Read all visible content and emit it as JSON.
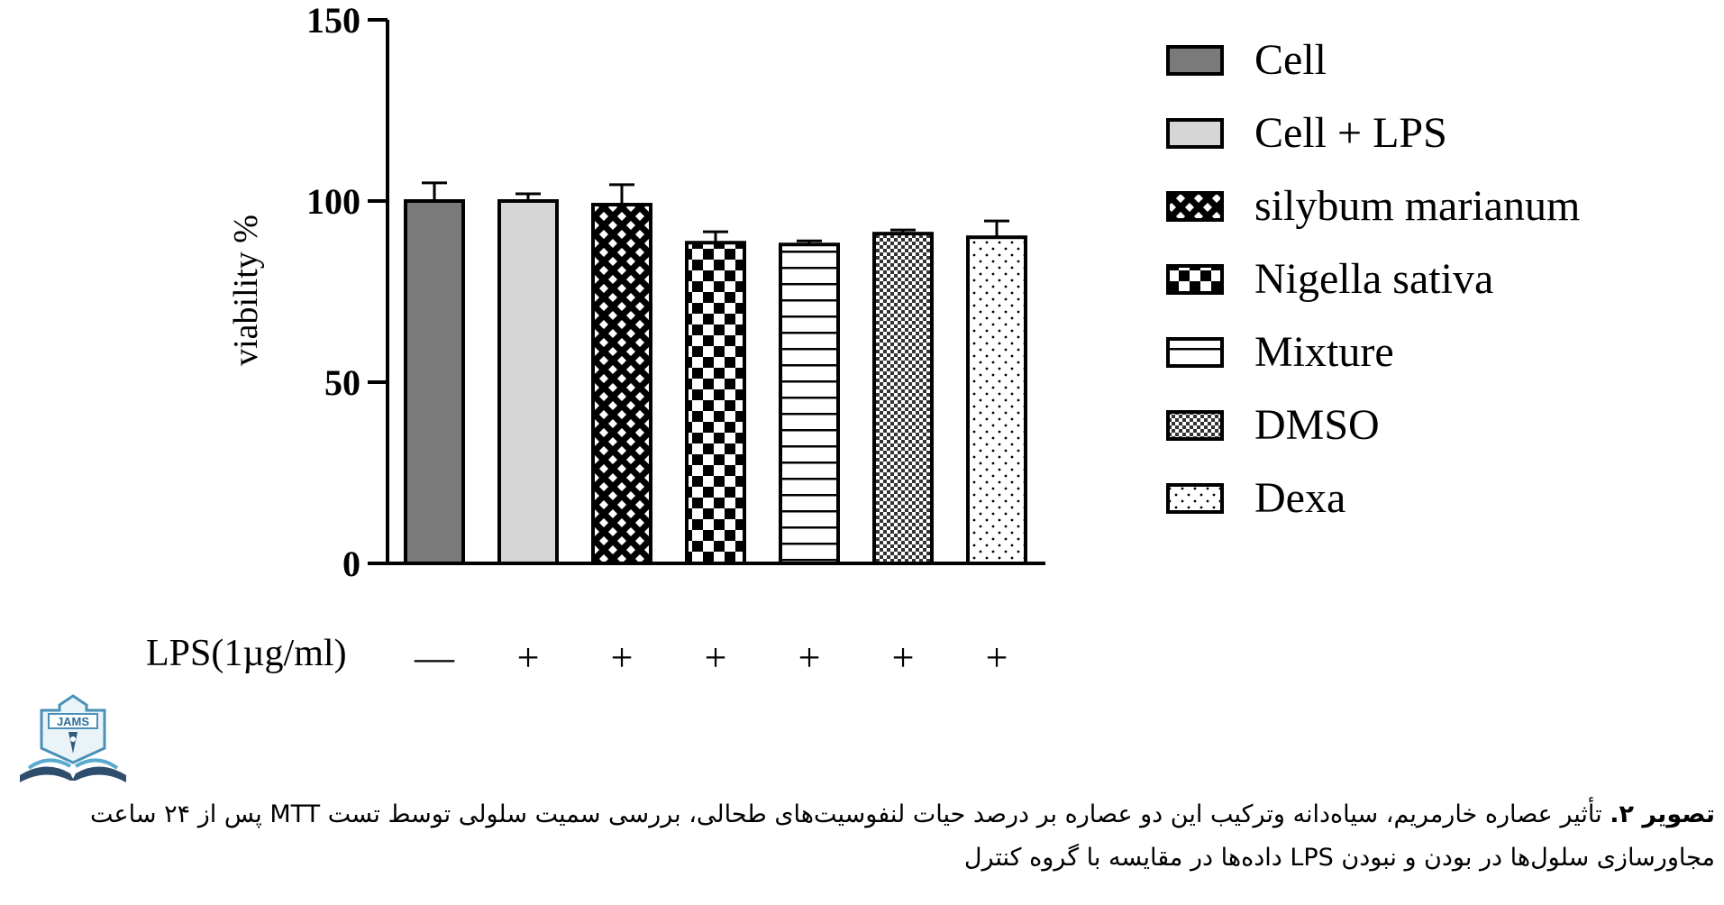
{
  "chart_data": {
    "type": "bar",
    "ylabel": "viability %",
    "ylim": [
      0,
      150
    ],
    "yticks": [
      "0",
      "50",
      "100",
      "150"
    ],
    "categories": [
      "Cell",
      "Cell + LPS",
      "silybum marianum",
      "Nigella sativa",
      "Mixture",
      "DMSO",
      "Dexa"
    ],
    "values": [
      100,
      100,
      99,
      88.5,
      88,
      91,
      90
    ],
    "errors": [
      5,
      2,
      5.5,
      3,
      1,
      1,
      4.5
    ],
    "patterns": [
      "solid-dark-gray",
      "solid-light-gray",
      "crosshatch",
      "checkerboard",
      "horizontal-lines",
      "fine-checkerboard",
      "dots"
    ],
    "lps_row": {
      "label": "LPS(1µg/ml)",
      "signs": [
        "—",
        "+",
        "+",
        "+",
        "+",
        "+",
        "+"
      ]
    },
    "legend_position": "right",
    "grid": false
  },
  "caption": {
    "label": "تصویر ۲.",
    "text": " تأثیر عصاره خارمریم، سیاه‌دانه وترکیب این دو عصاره بر درصد حیات لنفوسیت‌های طحالی، بررسی سمیت سلولی توسط تست MTT پس از ۲۴ ساعت مجاورسازی سلول‌ها در بودن و نبودن LPS داده‌ها در مقایسه با گروه کنترل"
  },
  "logo": {
    "text": "JAMS",
    "icon": "jams-journal-logo"
  }
}
